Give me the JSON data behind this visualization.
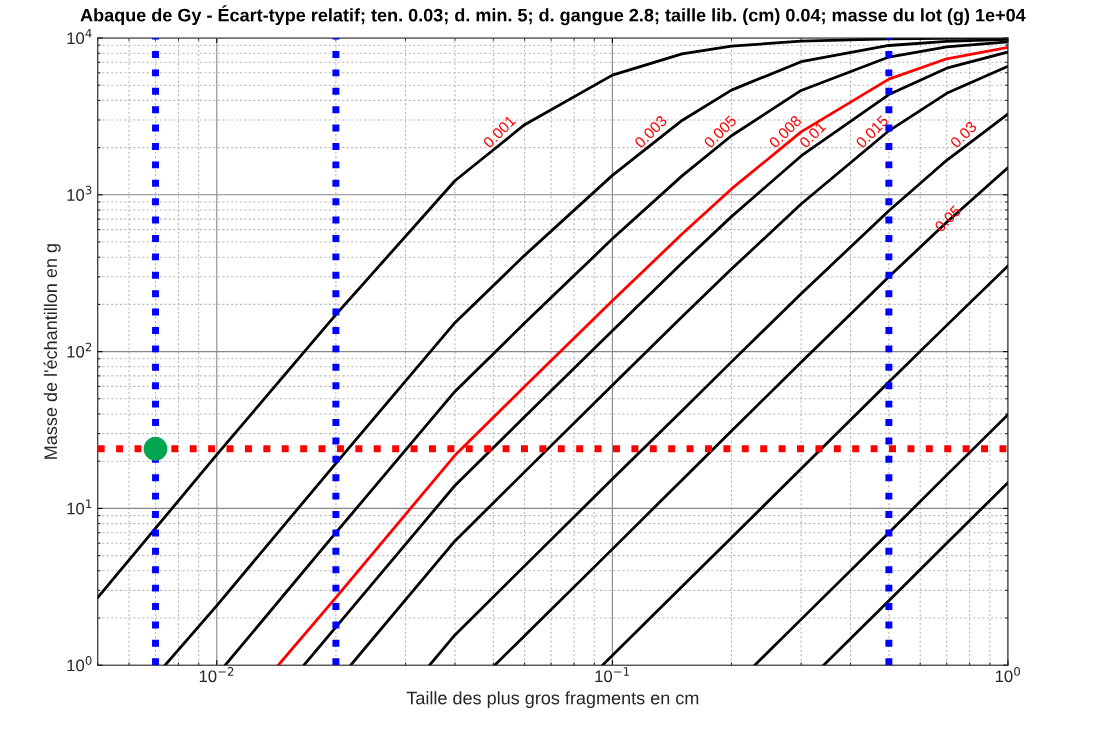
{
  "chart_data": {
    "type": "line",
    "title": "Abaque de Gy - Écart-type relatif; ten. 0.03; d. min. 5; d. gangue 2.8; taille lib. (cm) 0.04; masse du lot (g) 1e+04",
    "xlabel": "Taille des plus gros fragments en cm",
    "ylabel": "Masse de l'échantillon en g",
    "log": "xy",
    "grid": true,
    "legend": false,
    "xlim": [
      0.005,
      1
    ],
    "xticks": [
      {
        "value": 0.01,
        "label": "10$^{−2}$"
      },
      {
        "value": 0.1,
        "label": "10$^{−1}$"
      },
      {
        "value": 1,
        "label": "10$^{0}$"
      }
    ],
    "ylim": [
      1,
      10000
    ],
    "yticks": [
      {
        "value": 1,
        "label": "10$^{0}$"
      },
      {
        "value": 10,
        "label": "10$^{1}$"
      },
      {
        "value": 100,
        "label": "10$^{2}$"
      },
      {
        "value": 1000,
        "label": "10$^{3}$"
      },
      {
        "value": 10000,
        "label": "10$^{4}$"
      }
    ],
    "series": [
      {
        "name": "0.001",
        "color": "#000000",
        "x": [
          0.005,
          0.01,
          0.02,
          0.04,
          0.06,
          0.1,
          0.15,
          0.2,
          0.3,
          0.5,
          0.7,
          1
        ],
        "values": [
          2.7,
          22,
          172,
          1230,
          2800,
          5800,
          7920,
          8870,
          9560,
          9870,
          9945,
          9977
        ]
      },
      {
        "name": "0.003",
        "color": "#000000",
        "x": [
          0.0074,
          0.01,
          0.02,
          0.04,
          0.06,
          0.1,
          0.15,
          0.2,
          0.3,
          0.5,
          0.7,
          1
        ],
        "values": [
          1.0,
          2.4,
          19.4,
          153,
          411,
          1330,
          2980,
          4650,
          7060,
          8960,
          9520,
          9800
        ]
      },
      {
        "name": "0.005",
        "color": "#000000",
        "x": [
          0.0105,
          0.02,
          0.04,
          0.06,
          0.1,
          0.15,
          0.2,
          0.3,
          0.5,
          0.7,
          1
        ],
        "values": [
          1.0,
          7.0,
          55.7,
          152,
          524,
          1320,
          2380,
          4630,
          7560,
          8780,
          9460
        ]
      },
      {
        "name": "0.008",
        "color": "#ff0000",
        "x": [
          0.0143,
          0.02,
          0.04,
          0.06,
          0.1,
          0.15,
          0.2,
          0.3,
          0.5,
          0.7,
          1
        ],
        "values": [
          1.0,
          2.7,
          21.8,
          59.9,
          211,
          562,
          1090,
          2520,
          5470,
          7370,
          8720
        ]
      },
      {
        "name": "0.01",
        "color": "#000000",
        "x": [
          0.0166,
          0.02,
          0.04,
          0.06,
          0.1,
          0.15,
          0.2,
          0.3,
          0.5,
          0.7,
          1
        ],
        "values": [
          1.0,
          1.75,
          14,
          38.4,
          136,
          367,
          726,
          1770,
          4360,
          6420,
          8140
        ]
      },
      {
        "name": "0.015",
        "color": "#000000",
        "x": [
          0.0218,
          0.04,
          0.06,
          0.1,
          0.15,
          0.2,
          0.3,
          0.5,
          0.7,
          1
        ],
        "values": [
          1.0,
          6.2,
          17.1,
          61,
          167,
          336,
          874,
          2560,
          4440,
          6600
        ]
      },
      {
        "name": "0.03",
        "color": "#000000",
        "x": [
          0.0345,
          0.04,
          0.06,
          0.1,
          0.15,
          0.2,
          0.3,
          0.5,
          0.7,
          1
        ],
        "values": [
          1.0,
          1.56,
          4.3,
          15.4,
          42,
          86,
          234,
          791,
          1660,
          3270
        ]
      },
      {
        "name": "0.05",
        "color": "#000000",
        "x": [
          0.0504,
          0.06,
          0.1,
          0.15,
          0.2,
          0.3,
          0.5,
          0.7,
          1
        ],
        "values": [
          1.0,
          1.54,
          5.5,
          15.2,
          31.2,
          85.5,
          300,
          669,
          1490
        ]
      },
      {
        "color": "#000000",
        "x": [
          0.0944,
          0.15,
          0.2,
          0.3,
          0.5,
          0.7,
          1
        ],
        "values": [
          1.0,
          3.18,
          6.5,
          17.9,
          64,
          147,
          352
        ]
      },
      {
        "color": "#000000",
        "x": [
          0.229,
          0.3,
          0.5,
          0.7,
          1
        ],
        "values": [
          1.0,
          1.96,
          7.0,
          16.3,
          39.6
        ]
      },
      {
        "color": "#000000",
        "x": [
          0.342,
          0.5,
          0.7,
          1
        ],
        "values": [
          1.0,
          2.58,
          6.0,
          14.6
        ]
      },
      {
        "type": "scatter",
        "marker": "circle",
        "color": "#00a550",
        "x": [
          0.007
        ],
        "values": [
          24
        ]
      }
    ],
    "ref_lines": [
      {
        "axis": "x",
        "value": 0.007,
        "color": "#0000ff",
        "line_style": "dotted"
      },
      {
        "axis": "x",
        "value": 0.02,
        "color": "#0000ff",
        "line_style": "dotted"
      },
      {
        "axis": "x",
        "value": 0.5,
        "color": "#0000ff",
        "line_style": "dotted"
      },
      {
        "axis": "y",
        "value": 24,
        "color": "#ff0000",
        "line_style": "dotted"
      }
    ]
  }
}
